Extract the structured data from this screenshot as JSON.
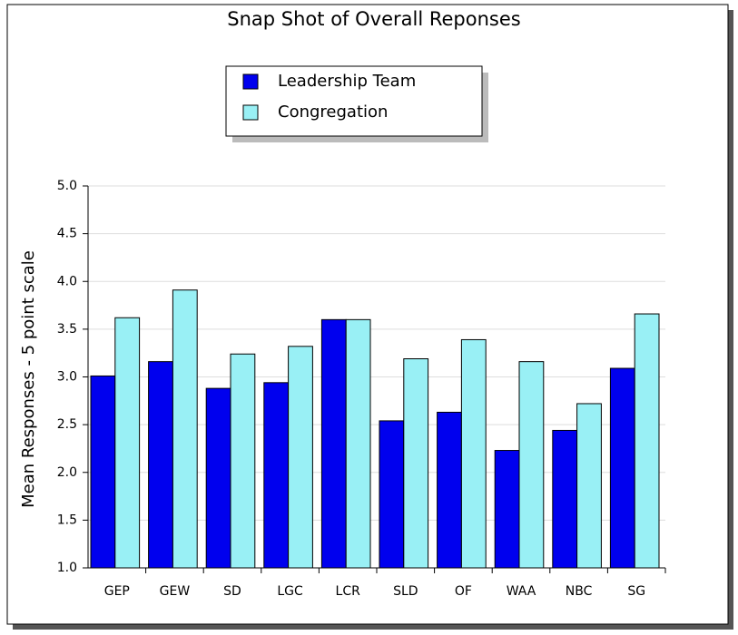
{
  "chart_data": {
    "type": "bar",
    "title": "Snap Shot of Overall Reponses",
    "y_label": "Mean Responses - 5 point scale",
    "categories": [
      "GEP",
      "GEW",
      "SD",
      "LGC",
      "LCR",
      "SLD",
      "OF",
      "WAA",
      "NBC",
      "SG"
    ],
    "series": [
      {
        "name": "Leadership Team",
        "color": "#0000ee",
        "values": [
          3.01,
          3.16,
          2.88,
          2.94,
          3.6,
          2.54,
          2.63,
          2.23,
          2.44,
          3.09
        ]
      },
      {
        "name": "Congregation",
        "color": "#99f0f5",
        "values": [
          3.62,
          3.91,
          3.24,
          3.32,
          3.6,
          3.19,
          3.39,
          3.16,
          2.72,
          3.66
        ]
      }
    ],
    "ylim": [
      1.0,
      5.0
    ],
    "yticks": [
      {
        "value": 1.0,
        "label": "1.0"
      },
      1.5,
      {
        "value": 2.0,
        "label": "2.0"
      },
      2.5,
      {
        "value": 3.0,
        "label": "3.0"
      },
      3.5,
      {
        "value": 4.0,
        "label": "4.0"
      },
      4.5,
      {
        "value": 5.0,
        "label": "5.0"
      }
    ],
    "grid": true
  }
}
